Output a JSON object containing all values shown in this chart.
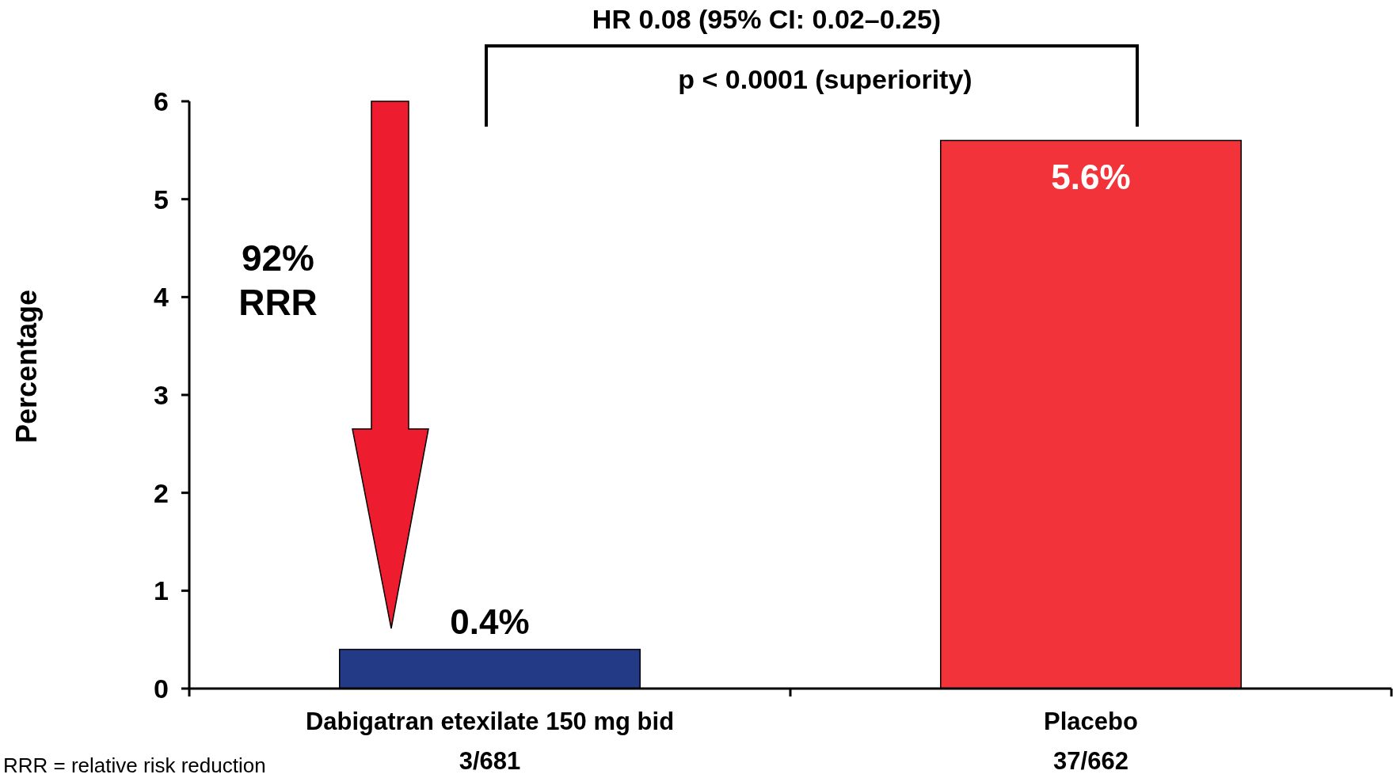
{
  "chart_data": {
    "type": "bar",
    "ylabel": "Percentage",
    "categories": [
      "Dabigatran etexilate 150 mg bid\n3/681",
      "Placebo\n37/662"
    ],
    "values": [
      0.4,
      5.6
    ],
    "colors": [
      "#233a87",
      "#f2333a"
    ],
    "value_labels": [
      "0.4%",
      "5.6%"
    ],
    "ylim": [
      0,
      6
    ],
    "yticks": [
      0,
      1,
      2,
      3,
      4,
      5,
      6
    ],
    "annotations": [
      "HR 0.08 (95% CI: 0.02–0.25)",
      "p < 0.0001 (superiority)",
      "92%\nRRR",
      "RRR = relative risk reduction"
    ]
  }
}
